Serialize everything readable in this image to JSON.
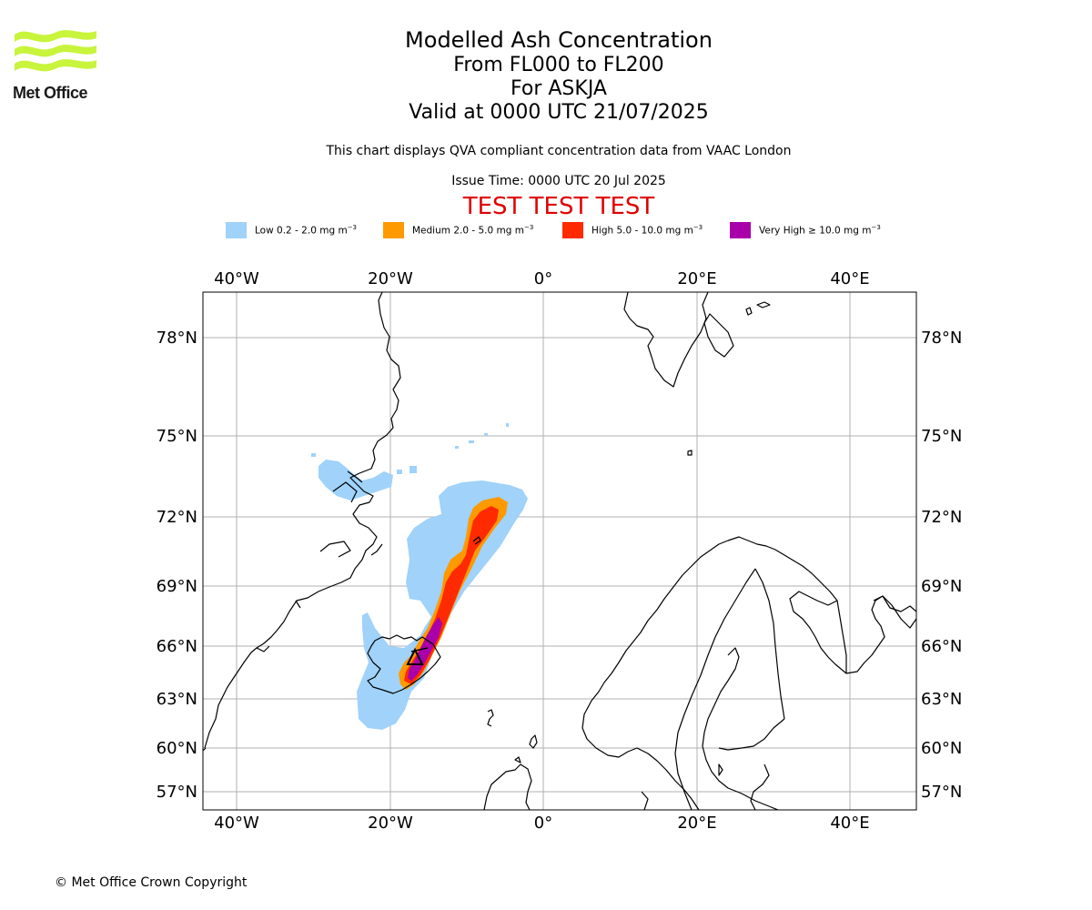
{
  "branding": {
    "logo_text": "Met Office",
    "logo_color": "#c8f43c"
  },
  "titles": {
    "main": "Modelled Ash Concentration",
    "levels": "From FL000 to FL200",
    "volcano": "For ASKJA",
    "valid": "Valid at 0000 UTC 21/07/2025"
  },
  "subtitle": "This chart displays QVA compliant concentration data from VAAC London",
  "issue_time": "Issue Time: 0000 UTC 20 Jul 2025",
  "test_banner": "TEST TEST TEST",
  "legend": [
    {
      "label": "Low 0.2 - 2.0 mg m",
      "unit_exp": "−3",
      "color": "#a0d2fa"
    },
    {
      "label": "Medium 2.0 - 5.0 mg m",
      "unit_exp": "−3",
      "color": "#ff9900"
    },
    {
      "label": "High 5.0 - 10.0 mg m",
      "unit_exp": "−3",
      "color": "#ff2a00"
    },
    {
      "label": "Very High  ≥  10.0 mg m",
      "unit_exp": "−3",
      "color": "#aa00aa"
    }
  ],
  "axes": {
    "longitude_ticks": [
      "40°W",
      "20°W",
      "0°",
      "20°E",
      "40°E"
    ],
    "latitude_ticks": [
      "78°N",
      "75°N",
      "72°N",
      "69°N",
      "66°N",
      "63°N",
      "60°N",
      "57°N"
    ]
  },
  "footer": {
    "copyright": "© Met Office Crown Copyright"
  }
}
